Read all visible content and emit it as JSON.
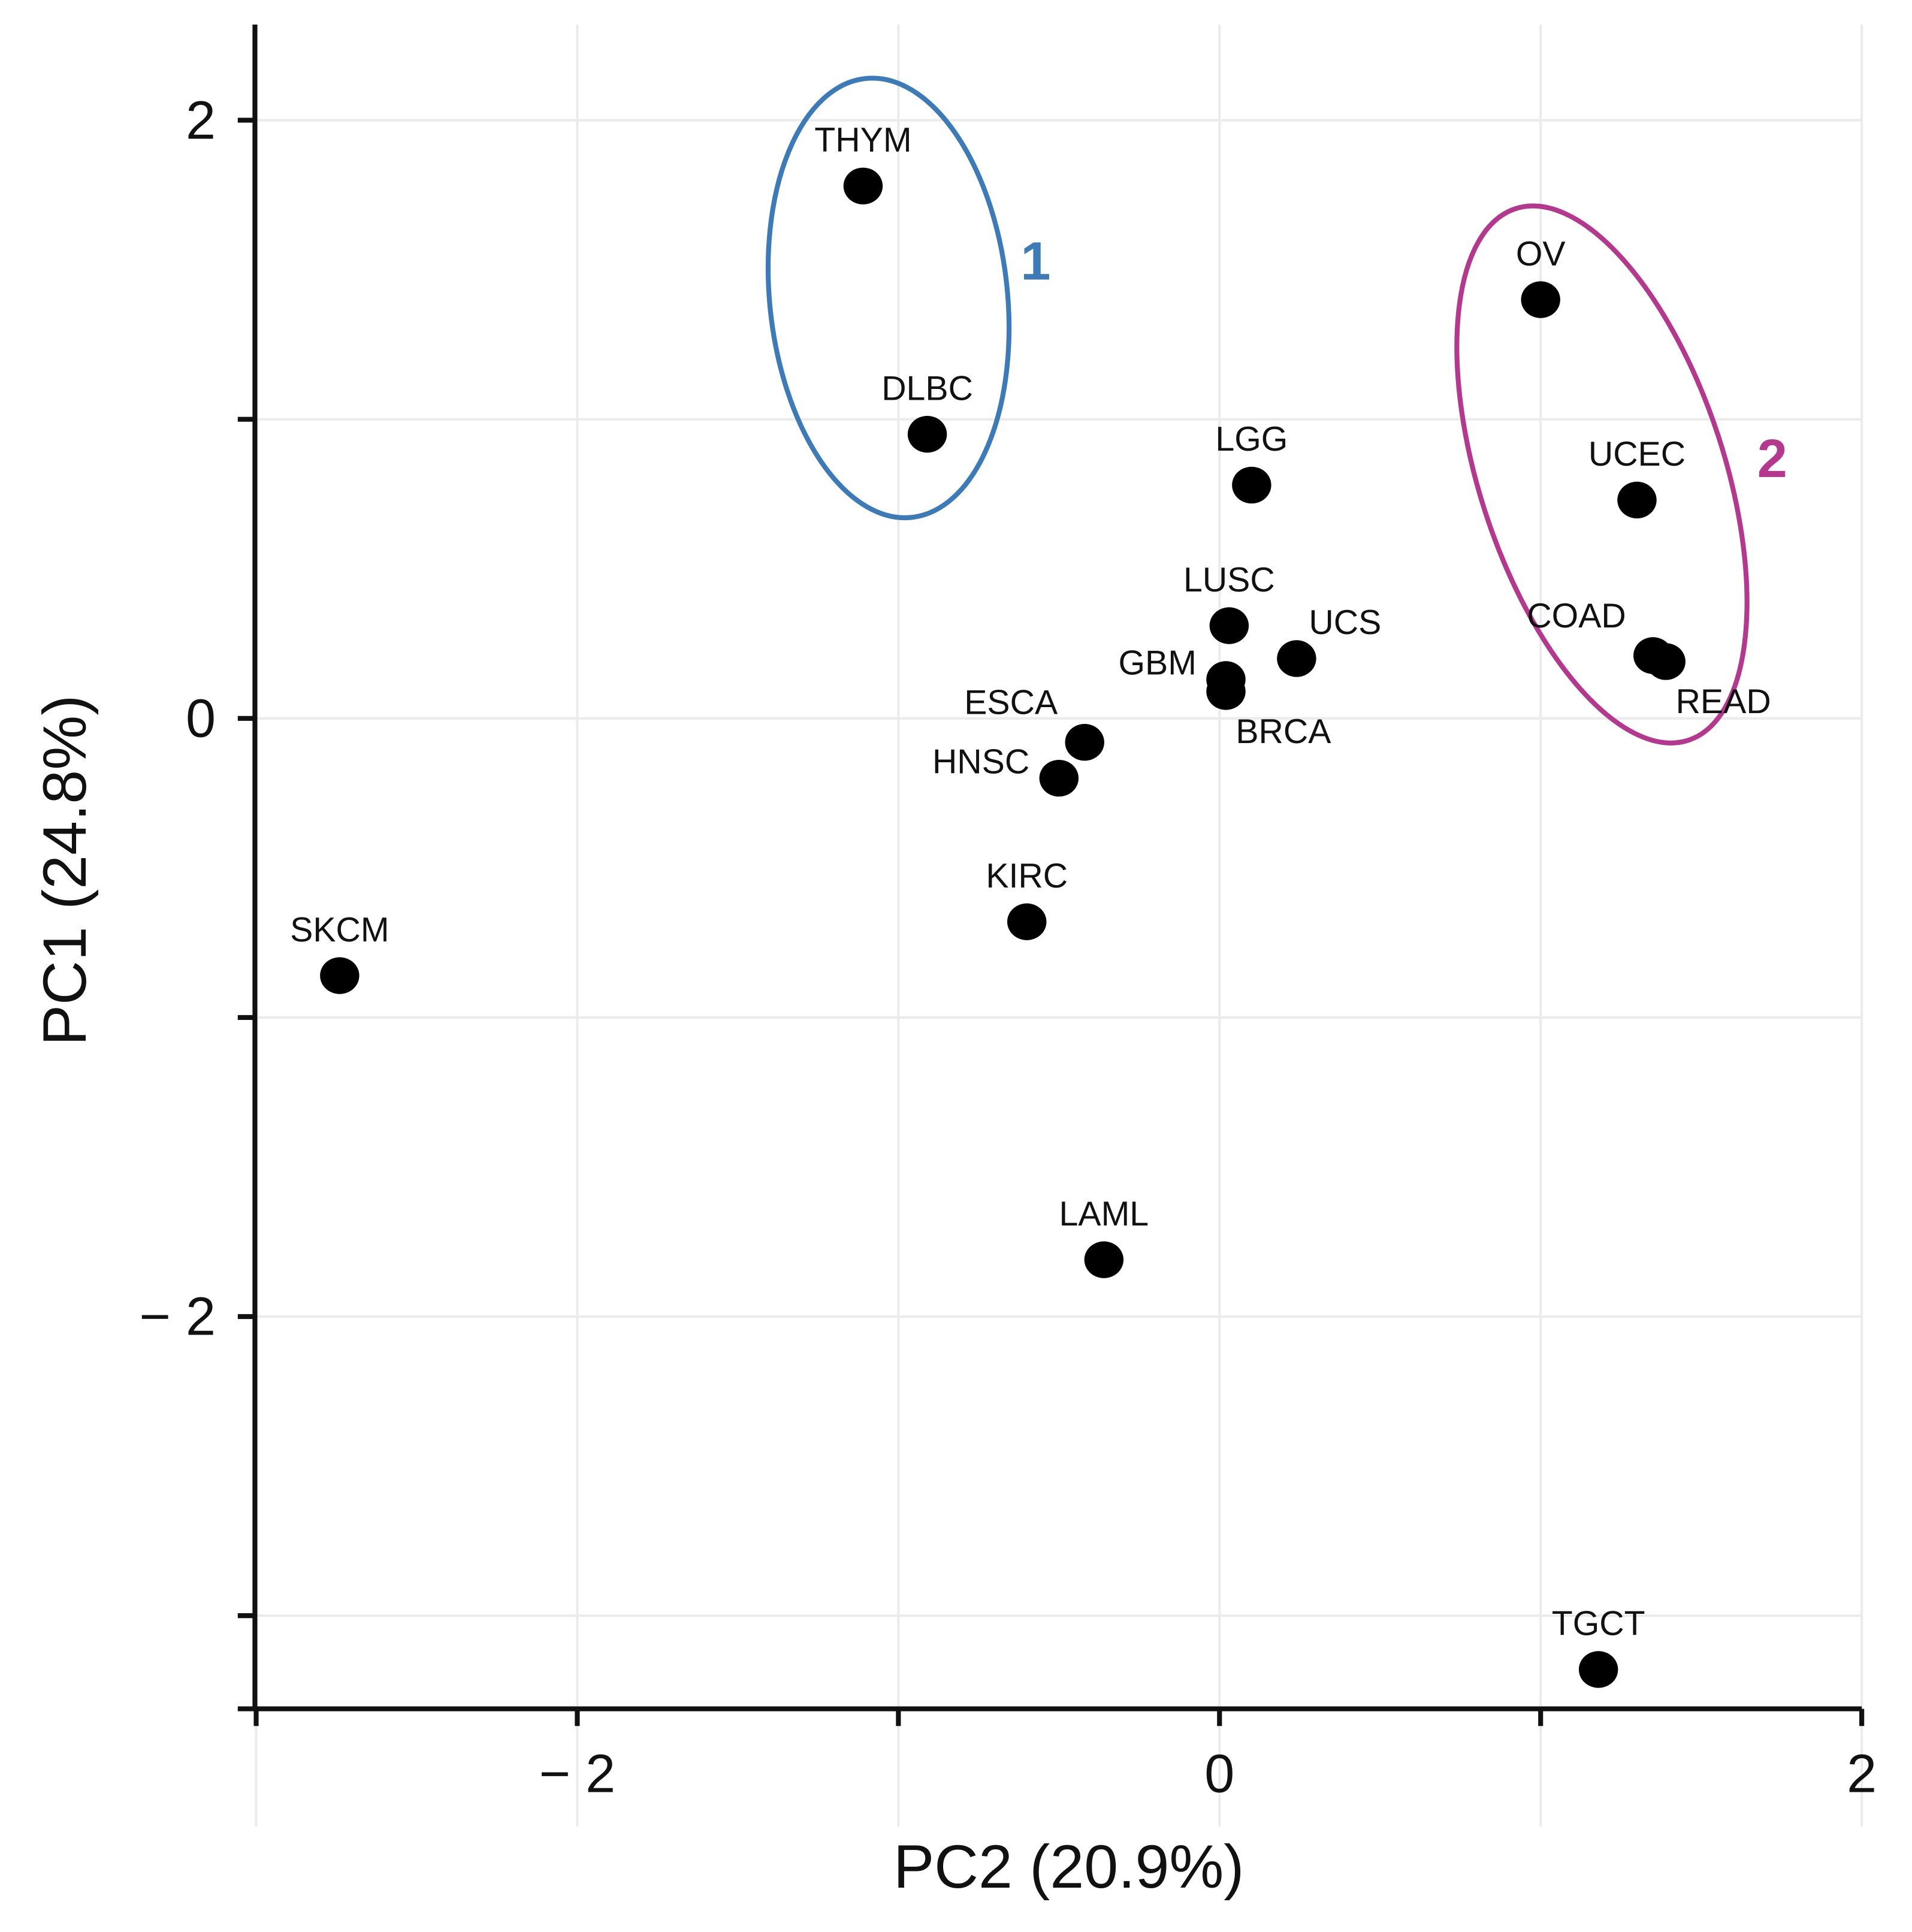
{
  "chart_data": {
    "type": "scatter",
    "xlabel": "PC2 (20.9%)",
    "ylabel": "PC1 (24.8%)",
    "xlim": [
      -3,
      2
    ],
    "ylim": [
      -3.3,
      2.3
    ],
    "xticks": [
      -3,
      -2,
      -1,
      0,
      1,
      2
    ],
    "xtick_labels": [
      "",
      "− 2",
      "",
      "0",
      "",
      "2"
    ],
    "yticks": [
      -3,
      -2,
      -1,
      0,
      1,
      2
    ],
    "ytick_labels": [
      "",
      "− 2",
      "",
      "0",
      "",
      "2"
    ],
    "grid": true,
    "point_color": "#000000",
    "points": [
      {
        "label": "THYM",
        "x": -1.11,
        "y": 1.78,
        "label_pos": "above"
      },
      {
        "label": "DLBC",
        "x": -0.91,
        "y": 0.95,
        "label_pos": "above"
      },
      {
        "label": "LGG",
        "x": 0.1,
        "y": 0.78,
        "label_pos": "above"
      },
      {
        "label": "LUSC",
        "x": 0.03,
        "y": 0.31,
        "label_pos": "above"
      },
      {
        "label": "UCS",
        "x": 0.24,
        "y": 0.2,
        "label_pos": "above-right"
      },
      {
        "label": "GBM",
        "x": 0.02,
        "y": 0.13,
        "label_pos": "left"
      },
      {
        "label": "BRCA",
        "x": 0.02,
        "y": 0.09,
        "label_pos": "below-right"
      },
      {
        "label": "ESCA",
        "x": -0.42,
        "y": -0.08,
        "label_pos": "above-left"
      },
      {
        "label": "HNSC",
        "x": -0.5,
        "y": -0.2,
        "label_pos": "left"
      },
      {
        "label": "KIRC",
        "x": -0.6,
        "y": -0.68,
        "label_pos": "above"
      },
      {
        "label": "SKCM",
        "x": -2.74,
        "y": -0.86,
        "label_pos": "above"
      },
      {
        "label": "LAML",
        "x": -0.36,
        "y": -1.81,
        "label_pos": "above"
      },
      {
        "label": "TGCT",
        "x": 1.18,
        "y": -3.18,
        "label_pos": "above"
      },
      {
        "label": "OV",
        "x": 1.0,
        "y": 1.4,
        "label_pos": "above"
      },
      {
        "label": "UCEC",
        "x": 1.3,
        "y": 0.73,
        "label_pos": "above"
      },
      {
        "label": "COAD",
        "x": 1.35,
        "y": 0.21,
        "label_pos": "above-left"
      },
      {
        "label": "READ",
        "x": 1.39,
        "y": 0.19,
        "label_pos": "below-right"
      }
    ],
    "clusters": [
      {
        "label": "1",
        "color": "#3d7ab8",
        "members": [
          "THYM",
          "DLBC"
        ]
      },
      {
        "label": "2",
        "color": "#b5388f",
        "members": [
          "OV",
          "UCEC",
          "COAD",
          "READ"
        ]
      }
    ]
  }
}
